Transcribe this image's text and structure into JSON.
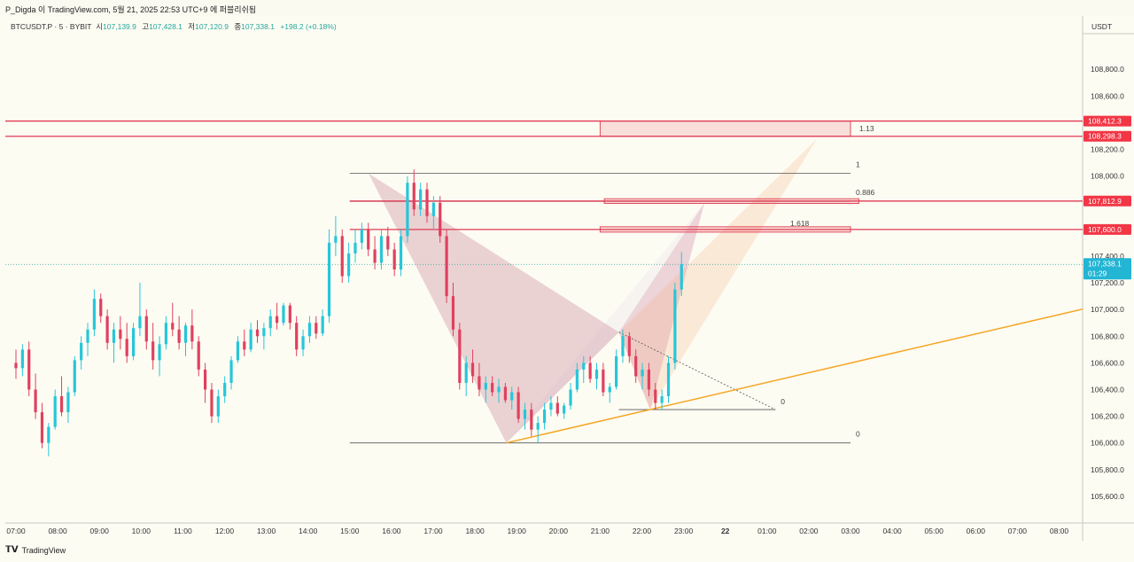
{
  "header": {
    "publish_text": "P_Digda 이 TradingView.com, 5월 21, 2025 22:53 UTC+9 에 퍼블리쉬됨",
    "symbol": "BTCUSDT.P · 5 · BYBIT",
    "open_label": "시",
    "open": "107,139.9",
    "high_label": "고",
    "high": "107,428.1",
    "low_label": "저",
    "low": "107,120.9",
    "close_label": "종",
    "close": "107,338.1",
    "change": "+198.2 (+0.18%)"
  },
  "footer": {
    "logo_text": "TradingView"
  },
  "chart_data": {
    "type": "candlestick",
    "currency_label": "USDT",
    "ylim": [
      105400,
      109200
    ],
    "y_ticks": [
      108800,
      108600,
      108400,
      108200,
      108000,
      107800,
      107600,
      107400,
      107200,
      107000,
      106800,
      106600,
      106400,
      106200,
      106000,
      105800,
      105600
    ],
    "y_tick_labels": [
      "108,800.0",
      "108,600.0",
      "108,400.0",
      "108,200.0",
      "108,000.0",
      "107,800.0",
      "107,600.0",
      "107,400.0",
      "107,200.0",
      "107,000.0",
      "106,800.0",
      "106,600.0",
      "106,400.0",
      "106,200.0",
      "106,000.0",
      "105,800.0",
      "105,600.0"
    ],
    "x_tick_labels": [
      "07:00",
      "08:00",
      "09:00",
      "10:00",
      "11:00",
      "12:00",
      "13:00",
      "14:00",
      "15:00",
      "16:00",
      "17:00",
      "18:00",
      "19:00",
      "20:00",
      "21:00",
      "22:00",
      "23:00",
      "22",
      "01:00",
      "02:00",
      "03:00",
      "04:00",
      "05:00",
      "06:00",
      "07:00",
      "08:00"
    ],
    "x_range_hours": [
      6.87,
      8.45
    ],
    "price_tags": [
      {
        "value": 108412.3,
        "label": "108,412.3",
        "color": "#f23645"
      },
      {
        "value": 108298.3,
        "label": "108,298.3",
        "color": "#f23645"
      },
      {
        "value": 107812.9,
        "label": "107,812.9",
        "color": "#f23645"
      },
      {
        "value": 107600.0,
        "label": "107,600.0",
        "color": "#f23645"
      },
      {
        "value": 107338.1,
        "label": "107,338.1",
        "sublabel": "01:29",
        "color": "#22b5d4"
      }
    ],
    "current_price": 107338.1,
    "trendline": {
      "from": {
        "t": 18.75,
        "v": 106000
      },
      "to": {
        "t": 32.8,
        "v": 107020
      },
      "color": "#f5a623"
    },
    "pattern": {
      "X": {
        "t": 15.45,
        "v": 108020
      },
      "A": {
        "t": 18.75,
        "v": 106000
      },
      "B": {
        "t": 21.45,
        "v": 106830
      },
      "C": {
        "t": 22.2,
        "v": 106250
      },
      "D": {
        "t": 26.2,
        "v": 108280
      },
      "D2": {
        "t": 23.5,
        "v": 107800
      }
    },
    "fib_lines": [
      {
        "label": "1",
        "v": 108020,
        "t1": 15.0,
        "t2": 27.0
      },
      {
        "label": "0.886",
        "v": 107810,
        "t1": 15.0,
        "t2": 27.0
      },
      {
        "label": "0",
        "v": 106000,
        "t1": 15.0,
        "t2": 27.0
      },
      {
        "label": "0",
        "v": 106250,
        "t1": 21.45,
        "t2": 25.2
      },
      {
        "label": "1.618",
        "v": 107600,
        "t1": 21.0,
        "t2": 27.0
      },
      {
        "label": "1.13",
        "v": 108355,
        "t1": 21.0,
        "t2": 27.0
      }
    ],
    "zones": [
      {
        "top": 108412.3,
        "bottom": 108298.3,
        "t1": 21.0,
        "t2": 27.0
      },
      {
        "top": 107830,
        "bottom": 107795,
        "t1": 21.1,
        "t2": 27.2
      },
      {
        "top": 107620,
        "bottom": 107580,
        "t1": 21.0,
        "t2": 27.0
      }
    ],
    "resistance_lines": [
      108412.3,
      108298.3,
      107812.9,
      107600.0
    ],
    "candles_ohlc": [
      [
        106600,
        106700,
        106480,
        106560
      ],
      [
        106560,
        106740,
        106500,
        106700
      ],
      [
        106700,
        106760,
        106350,
        106400
      ],
      [
        106400,
        106520,
        106180,
        106230
      ],
      [
        106230,
        106300,
        105960,
        106000
      ],
      [
        106000,
        106150,
        105900,
        106120
      ],
      [
        106120,
        106400,
        106100,
        106350
      ],
      [
        106350,
        106500,
        106200,
        106230
      ],
      [
        106230,
        106420,
        106150,
        106380
      ],
      [
        106380,
        106650,
        106350,
        106620
      ],
      [
        106620,
        106800,
        106550,
        106750
      ],
      [
        106750,
        106900,
        106650,
        106850
      ],
      [
        106850,
        107150,
        106800,
        107080
      ],
      [
        107080,
        107120,
        106900,
        106950
      ],
      [
        106950,
        107000,
        106700,
        106750
      ],
      [
        106750,
        106900,
        106600,
        106850
      ],
      [
        106850,
        106950,
        106700,
        106780
      ],
      [
        106780,
        106900,
        106600,
        106650
      ],
      [
        106650,
        106900,
        106620,
        106860
      ],
      [
        106860,
        107200,
        106800,
        106950
      ],
      [
        106950,
        107000,
        106700,
        106760
      ],
      [
        106760,
        106900,
        106550,
        106620
      ],
      [
        106620,
        106800,
        106500,
        106740
      ],
      [
        106740,
        106950,
        106700,
        106900
      ],
      [
        106900,
        107050,
        106800,
        106850
      ],
      [
        106850,
        106950,
        106700,
        106750
      ],
      [
        106750,
        106900,
        106650,
        106880
      ],
      [
        106880,
        107000,
        106700,
        106760
      ],
      [
        106760,
        106800,
        106500,
        106550
      ],
      [
        106550,
        106600,
        106300,
        106400
      ],
      [
        106400,
        106450,
        106150,
        106200
      ],
      [
        106200,
        106400,
        106150,
        106350
      ],
      [
        106350,
        106500,
        106300,
        106450
      ],
      [
        106450,
        106650,
        106400,
        106620
      ],
      [
        106620,
        106800,
        106600,
        106760
      ],
      [
        106760,
        106850,
        106650,
        106700
      ],
      [
        106700,
        106900,
        106680,
        106850
      ],
      [
        106850,
        106920,
        106750,
        106800
      ],
      [
        106800,
        106900,
        106700,
        106860
      ],
      [
        106860,
        107000,
        106800,
        106950
      ],
      [
        106950,
        107050,
        106850,
        106900
      ],
      [
        106900,
        107050,
        106880,
        107030
      ],
      [
        107030,
        107050,
        106850,
        106900
      ],
      [
        106900,
        106950,
        106650,
        106700
      ],
      [
        106700,
        106850,
        106650,
        106800
      ],
      [
        106800,
        106950,
        106750,
        106900
      ],
      [
        106900,
        106950,
        106780,
        106820
      ],
      [
        106820,
        107000,
        106800,
        106950
      ],
      [
        106950,
        107600,
        106900,
        107500
      ],
      [
        107500,
        107700,
        107400,
        107550
      ],
      [
        107550,
        107600,
        107200,
        107250
      ],
      [
        107250,
        107500,
        107200,
        107420
      ],
      [
        107420,
        107600,
        107350,
        107500
      ],
      [
        107500,
        107650,
        107450,
        107600
      ],
      [
        107600,
        107650,
        107400,
        107450
      ],
      [
        107450,
        107550,
        107300,
        107350
      ],
      [
        107350,
        107600,
        107300,
        107550
      ],
      [
        107550,
        107620,
        107400,
        107450
      ],
      [
        107450,
        107500,
        107250,
        107300
      ],
      [
        107300,
        107600,
        107250,
        107550
      ],
      [
        107550,
        108000,
        107500,
        107950
      ],
      [
        107950,
        108050,
        107700,
        107750
      ],
      [
        107750,
        107950,
        107700,
        107900
      ],
      [
        107900,
        107950,
        107650,
        107700
      ],
      [
        107700,
        107850,
        107600,
        107800
      ],
      [
        107800,
        107850,
        107500,
        107550
      ],
      [
        107550,
        107600,
        107050,
        107100
      ],
      [
        107100,
        107200,
        106800,
        106850
      ],
      [
        106850,
        106900,
        106400,
        106450
      ],
      [
        106450,
        106650,
        106350,
        106600
      ],
      [
        106600,
        106700,
        106450,
        106500
      ],
      [
        106500,
        106600,
        106350,
        106400
      ],
      [
        106400,
        106500,
        106300,
        106450
      ],
      [
        106450,
        106500,
        106350,
        106380
      ],
      [
        106380,
        106480,
        106300,
        106420
      ],
      [
        106420,
        106450,
        106300,
        106320
      ],
      [
        106320,
        106420,
        106250,
        106380
      ],
      [
        106380,
        106420,
        106150,
        106180
      ],
      [
        106180,
        106300,
        106100,
        106250
      ],
      [
        106250,
        106300,
        106050,
        106100
      ],
      [
        106100,
        106200,
        106000,
        106150
      ],
      [
        106150,
        106300,
        106100,
        106250
      ],
      [
        106250,
        106350,
        106200,
        106300
      ],
      [
        106300,
        106350,
        106200,
        106220
      ],
      [
        106220,
        106300,
        106180,
        106280
      ],
      [
        106280,
        106450,
        106250,
        106400
      ],
      [
        106400,
        106600,
        106380,
        106550
      ],
      [
        106550,
        106650,
        106450,
        106600
      ],
      [
        106600,
        106650,
        106450,
        106480
      ],
      [
        106480,
        106600,
        106400,
        106550
      ],
      [
        106550,
        106600,
        106350,
        106380
      ],
      [
        106380,
        106450,
        106300,
        106420
      ],
      [
        106420,
        106700,
        106400,
        106650
      ],
      [
        106650,
        106850,
        106600,
        106800
      ],
      [
        106800,
        106830,
        106600,
        106650
      ],
      [
        106650,
        106700,
        106450,
        106500
      ],
      [
        106500,
        106600,
        106400,
        106550
      ],
      [
        106550,
        106600,
        106350,
        106400
      ],
      [
        106400,
        106450,
        106250,
        106300
      ],
      [
        106300,
        106400,
        106250,
        106350
      ],
      [
        106350,
        106650,
        106300,
        106600
      ],
      [
        106600,
        107200,
        106550,
        107150
      ],
      [
        107150,
        107430,
        107100,
        107338
      ]
    ]
  }
}
